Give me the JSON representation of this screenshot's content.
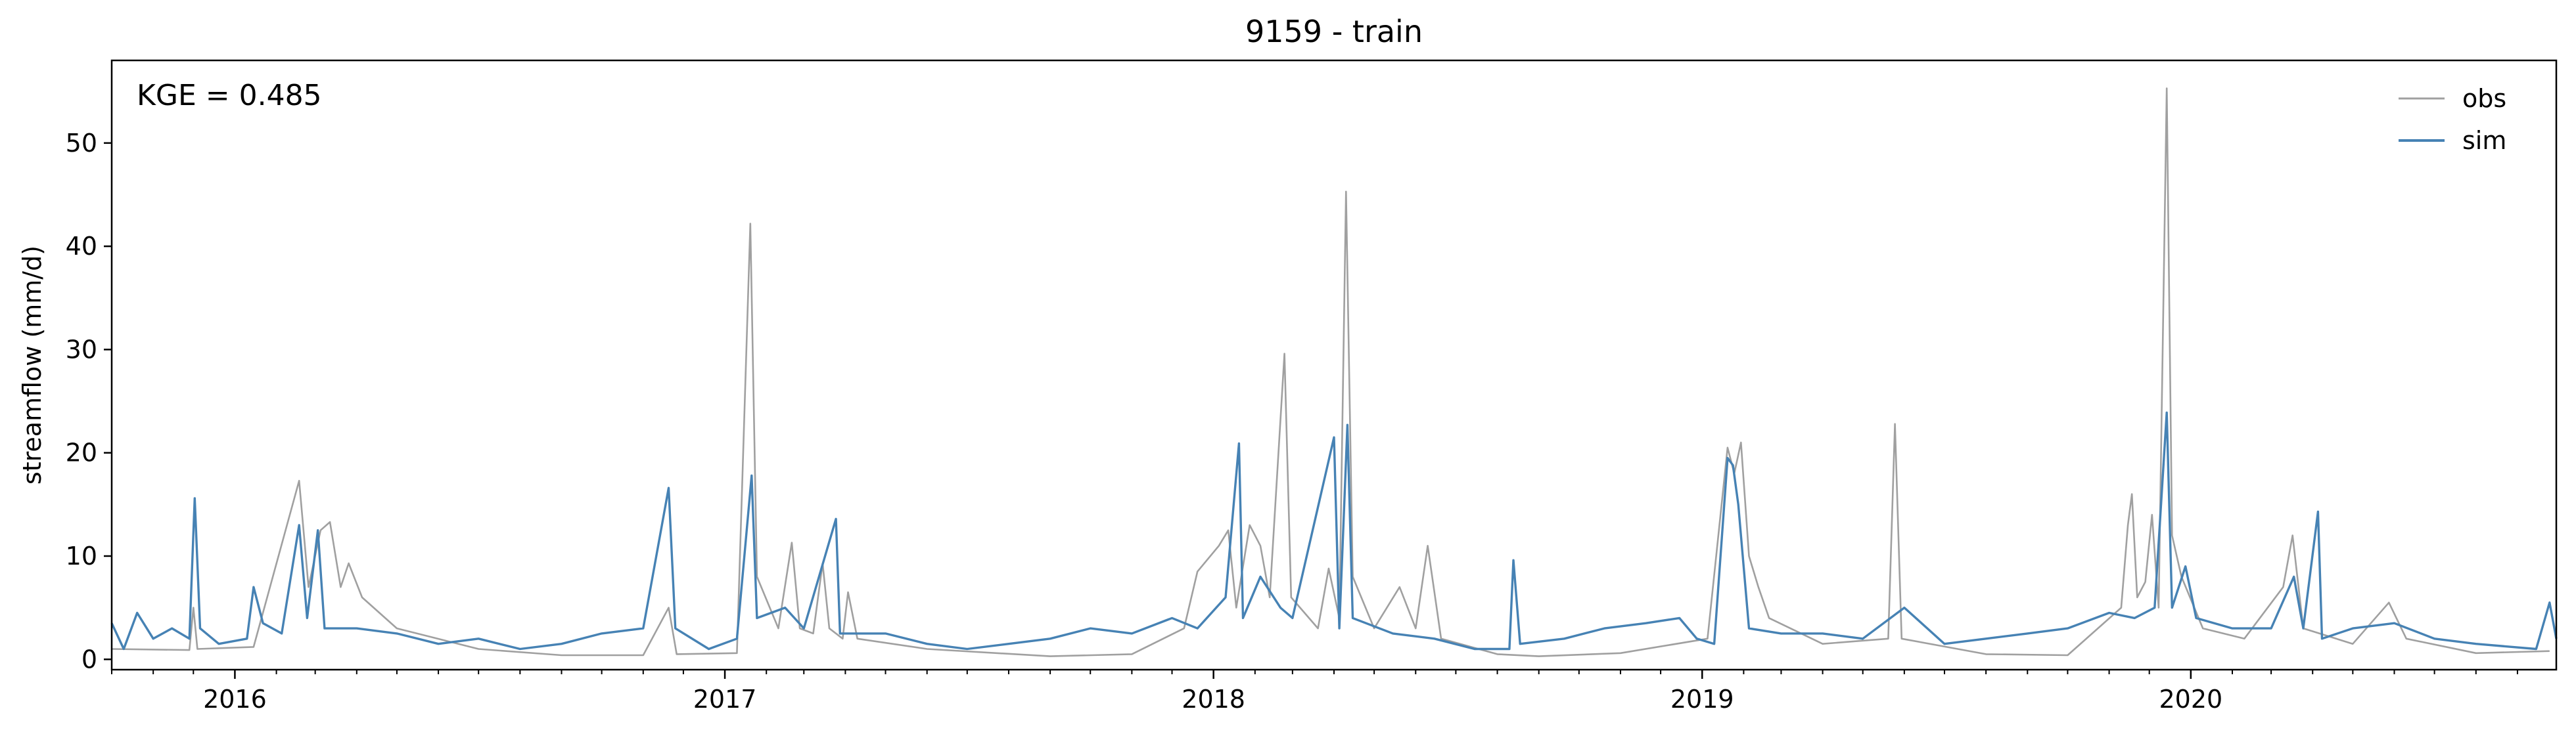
{
  "chart_data": {
    "type": "line",
    "title": "9159 - train",
    "xlabel": "",
    "ylabel": "streamflow (mm/d)",
    "annotation": "KGE = 0.485",
    "xlim": [
      "2015-10-01",
      "2020-09-30"
    ],
    "ylim": [
      -1,
      58
    ],
    "yticks": [
      0,
      10,
      20,
      30,
      40,
      50
    ],
    "xticks": [
      {
        "date": "2016-01-01",
        "label": "2016"
      },
      {
        "date": "2017-01-01",
        "label": "2017"
      },
      {
        "date": "2018-01-01",
        "label": "2018"
      },
      {
        "date": "2019-01-01",
        "label": "2019"
      },
      {
        "date": "2020-01-01",
        "label": "2020"
      }
    ],
    "legend": {
      "placement": "top-right"
    },
    "grid": false,
    "series": [
      {
        "name": "obs",
        "color": "#a0a0a0",
        "points": [
          [
            "2015-10-01",
            1.0
          ],
          [
            "2015-11-28",
            0.9
          ],
          [
            "2015-12-01",
            5.0
          ],
          [
            "2015-12-04",
            1.0
          ],
          [
            "2016-01-15",
            1.2
          ],
          [
            "2016-02-18",
            17.3
          ],
          [
            "2016-02-25",
            7.0
          ],
          [
            "2016-03-05",
            12.5
          ],
          [
            "2016-03-12",
            13.3
          ],
          [
            "2016-03-20",
            7.0
          ],
          [
            "2016-03-26",
            9.3
          ],
          [
            "2016-04-05",
            6.0
          ],
          [
            "2016-05-01",
            3.0
          ],
          [
            "2016-07-01",
            1.0
          ],
          [
            "2016-09-01",
            0.4
          ],
          [
            "2016-11-01",
            0.4
          ],
          [
            "2016-11-20",
            5.0
          ],
          [
            "2016-11-26",
            0.5
          ],
          [
            "2017-01-10",
            0.6
          ],
          [
            "2017-01-20",
            42.2
          ],
          [
            "2017-01-25",
            8.0
          ],
          [
            "2017-02-10",
            3.0
          ],
          [
            "2017-02-20",
            11.3
          ],
          [
            "2017-02-26",
            3.0
          ],
          [
            "2017-03-08",
            2.5
          ],
          [
            "2017-03-15",
            9.3
          ],
          [
            "2017-03-20",
            3.0
          ],
          [
            "2017-03-30",
            2.0
          ],
          [
            "2017-04-03",
            6.5
          ],
          [
            "2017-04-10",
            2.0
          ],
          [
            "2017-06-01",
            1.0
          ],
          [
            "2017-09-01",
            0.3
          ],
          [
            "2017-11-01",
            0.5
          ],
          [
            "2017-12-10",
            3.0
          ],
          [
            "2017-12-20",
            8.5
          ],
          [
            "2018-01-05",
            11.0
          ],
          [
            "2018-01-12",
            12.5
          ],
          [
            "2018-01-18",
            5.0
          ],
          [
            "2018-01-28",
            13.0
          ],
          [
            "2018-02-05",
            11.0
          ],
          [
            "2018-02-12",
            6.0
          ],
          [
            "2018-02-23",
            29.6
          ],
          [
            "2018-02-28",
            6.0
          ],
          [
            "2018-03-20",
            3.0
          ],
          [
            "2018-03-28",
            8.8
          ],
          [
            "2018-04-05",
            4.0
          ],
          [
            "2018-04-10",
            45.3
          ],
          [
            "2018-04-15",
            8.0
          ],
          [
            "2018-05-01",
            3.0
          ],
          [
            "2018-05-20",
            7.0
          ],
          [
            "2018-06-01",
            3.0
          ],
          [
            "2018-06-10",
            11.0
          ],
          [
            "2018-06-20",
            2.0
          ],
          [
            "2018-08-01",
            0.5
          ],
          [
            "2018-09-01",
            0.3
          ],
          [
            "2018-11-01",
            0.6
          ],
          [
            "2019-01-05",
            2.0
          ],
          [
            "2019-01-20",
            20.5
          ],
          [
            "2019-01-25",
            18.0
          ],
          [
            "2019-01-30",
            21.0
          ],
          [
            "2019-02-05",
            10.0
          ],
          [
            "2019-02-12",
            7.0
          ],
          [
            "2019-02-20",
            4.0
          ],
          [
            "2019-04-01",
            1.5
          ],
          [
            "2019-05-20",
            2.0
          ],
          [
            "2019-05-25",
            22.8
          ],
          [
            "2019-05-30",
            2.0
          ],
          [
            "2019-08-01",
            0.5
          ],
          [
            "2019-10-01",
            0.4
          ],
          [
            "2019-11-10",
            5.0
          ],
          [
            "2019-11-15",
            13.0
          ],
          [
            "2019-11-18",
            16.0
          ],
          [
            "2019-11-22",
            6.0
          ],
          [
            "2019-11-28",
            7.5
          ],
          [
            "2019-12-03",
            14.0
          ],
          [
            "2019-12-08",
            5.0
          ],
          [
            "2019-12-14",
            55.3
          ],
          [
            "2019-12-18",
            12.0
          ],
          [
            "2019-12-25",
            8.0
          ],
          [
            "2020-01-10",
            3.0
          ],
          [
            "2020-02-10",
            2.0
          ],
          [
            "2020-03-10",
            7.0
          ],
          [
            "2020-03-17",
            12.0
          ],
          [
            "2020-03-25",
            3.0
          ],
          [
            "2020-05-01",
            1.5
          ],
          [
            "2020-05-28",
            5.5
          ],
          [
            "2020-06-10",
            2.0
          ],
          [
            "2020-08-01",
            0.6
          ],
          [
            "2020-09-25",
            0.8
          ]
        ]
      },
      {
        "name": "sim",
        "color": "#4682b4",
        "points": [
          [
            "2015-10-01",
            3.5
          ],
          [
            "2015-10-10",
            1.0
          ],
          [
            "2015-10-20",
            4.5
          ],
          [
            "2015-11-01",
            2.0
          ],
          [
            "2015-11-15",
            3.0
          ],
          [
            "2015-11-28",
            2.0
          ],
          [
            "2015-12-02",
            15.6
          ],
          [
            "2015-12-06",
            3.0
          ],
          [
            "2015-12-20",
            1.5
          ],
          [
            "2016-01-10",
            2.0
          ],
          [
            "2016-01-15",
            7.0
          ],
          [
            "2016-01-22",
            3.5
          ],
          [
            "2016-02-05",
            2.5
          ],
          [
            "2016-02-18",
            13.0
          ],
          [
            "2016-02-24",
            4.0
          ],
          [
            "2016-03-03",
            12.5
          ],
          [
            "2016-03-08",
            3.0
          ],
          [
            "2016-04-01",
            3.0
          ],
          [
            "2016-05-01",
            2.5
          ],
          [
            "2016-06-01",
            1.5
          ],
          [
            "2016-07-01",
            2.0
          ],
          [
            "2016-08-01",
            1.0
          ],
          [
            "2016-09-01",
            1.5
          ],
          [
            "2016-10-01",
            2.5
          ],
          [
            "2016-11-01",
            3.0
          ],
          [
            "2016-11-20",
            16.6
          ],
          [
            "2016-11-25",
            3.0
          ],
          [
            "2016-12-20",
            1.0
          ],
          [
            "2017-01-10",
            2.0
          ],
          [
            "2017-01-21",
            17.8
          ],
          [
            "2017-01-25",
            4.0
          ],
          [
            "2017-02-15",
            5.0
          ],
          [
            "2017-03-01",
            3.0
          ],
          [
            "2017-03-25",
            13.6
          ],
          [
            "2017-03-28",
            2.5
          ],
          [
            "2017-05-01",
            2.5
          ],
          [
            "2017-06-01",
            1.5
          ],
          [
            "2017-07-01",
            1.0
          ],
          [
            "2017-08-01",
            1.5
          ],
          [
            "2017-09-01",
            2.0
          ],
          [
            "2017-10-01",
            3.0
          ],
          [
            "2017-11-01",
            2.5
          ],
          [
            "2017-12-01",
            4.0
          ],
          [
            "2017-12-20",
            3.0
          ],
          [
            "2018-01-10",
            6.0
          ],
          [
            "2018-01-20",
            20.9
          ],
          [
            "2018-01-23",
            4.0
          ],
          [
            "2018-02-05",
            8.0
          ],
          [
            "2018-02-20",
            5.0
          ],
          [
            "2018-03-01",
            4.0
          ],
          [
            "2018-04-01",
            21.5
          ],
          [
            "2018-04-05",
            3.0
          ],
          [
            "2018-04-11",
            22.7
          ],
          [
            "2018-04-15",
            4.0
          ],
          [
            "2018-05-15",
            2.5
          ],
          [
            "2018-06-15",
            2.0
          ],
          [
            "2018-07-15",
            1.0
          ],
          [
            "2018-08-10",
            1.0
          ],
          [
            "2018-08-13",
            9.6
          ],
          [
            "2018-08-18",
            1.5
          ],
          [
            "2018-09-20",
            2.0
          ],
          [
            "2018-10-20",
            3.0
          ],
          [
            "2018-11-20",
            3.5
          ],
          [
            "2018-12-15",
            4.0
          ],
          [
            "2018-12-28",
            2.0
          ],
          [
            "2019-01-10",
            1.5
          ],
          [
            "2019-01-20",
            19.5
          ],
          [
            "2019-01-24",
            18.8
          ],
          [
            "2019-01-28",
            15.0
          ],
          [
            "2019-02-05",
            3.0
          ],
          [
            "2019-03-01",
            2.5
          ],
          [
            "2019-04-01",
            2.5
          ],
          [
            "2019-05-01",
            2.0
          ],
          [
            "2019-06-01",
            5.0
          ],
          [
            "2019-07-01",
            1.5
          ],
          [
            "2019-08-01",
            2.0
          ],
          [
            "2019-09-01",
            2.5
          ],
          [
            "2019-10-01",
            3.0
          ],
          [
            "2019-11-01",
            4.5
          ],
          [
            "2019-11-20",
            4.0
          ],
          [
            "2019-12-05",
            5.0
          ],
          [
            "2019-12-14",
            23.9
          ],
          [
            "2019-12-18",
            5.0
          ],
          [
            "2019-12-28",
            9.0
          ],
          [
            "2020-01-05",
            4.0
          ],
          [
            "2020-02-01",
            3.0
          ],
          [
            "2020-03-01",
            3.0
          ],
          [
            "2020-03-18",
            8.0
          ],
          [
            "2020-03-25",
            3.0
          ],
          [
            "2020-04-05",
            14.3
          ],
          [
            "2020-04-08",
            2.0
          ],
          [
            "2020-05-01",
            3.0
          ],
          [
            "2020-06-01",
            3.5
          ],
          [
            "2020-07-01",
            2.0
          ],
          [
            "2020-08-01",
            1.5
          ],
          [
            "2020-09-15",
            1.0
          ],
          [
            "2020-09-25",
            5.5
          ],
          [
            "2020-09-30",
            2.0
          ]
        ]
      }
    ]
  }
}
